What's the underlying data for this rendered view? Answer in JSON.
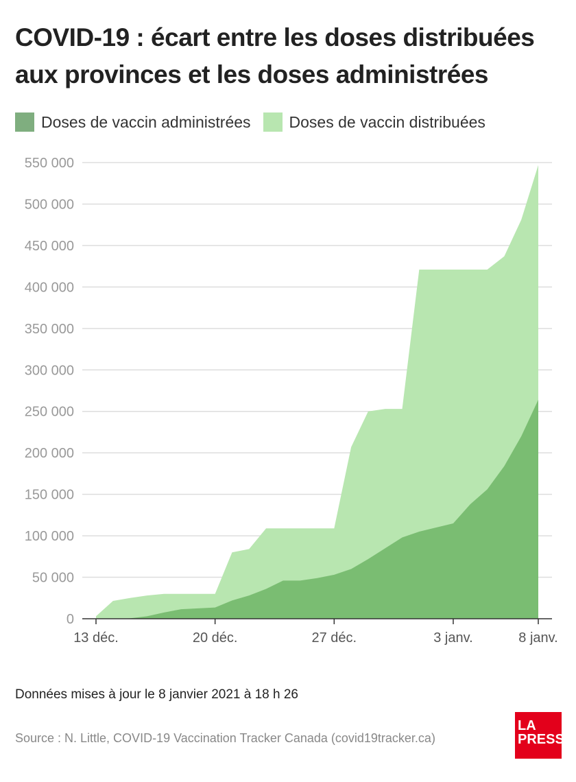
{
  "chart_data": {
    "type": "area",
    "title": "COVID-19 : écart entre les doses distribuées aux provinces et les doses administrées",
    "xlabel": "",
    "ylabel": "",
    "x": [
      "13 déc.",
      "14 déc.",
      "15 déc.",
      "16 déc.",
      "17 déc.",
      "18 déc.",
      "19 déc.",
      "20 déc.",
      "21 déc.",
      "22 déc.",
      "23 déc.",
      "24 déc.",
      "25 déc.",
      "26 déc.",
      "27 déc.",
      "28 déc.",
      "29 déc.",
      "30 déc.",
      "31 déc.",
      "1 janv.",
      "2 janv.",
      "3 janv.",
      "4 janv.",
      "5 janv.",
      "6 janv.",
      "7 janv.",
      "8 janv."
    ],
    "x_ticks": [
      {
        "index": 0,
        "label": "13 déc."
      },
      {
        "index": 7,
        "label": "20 déc."
      },
      {
        "index": 14,
        "label": "27 déc."
      },
      {
        "index": 21,
        "label": "3 janv."
      },
      {
        "index": 26,
        "label": "8 janv."
      }
    ],
    "y_ticks": [
      {
        "value": 0,
        "label": "0"
      },
      {
        "value": 50000,
        "label": "50 000"
      },
      {
        "value": 100000,
        "label": "100 000"
      },
      {
        "value": 150000,
        "label": "150 000"
      },
      {
        "value": 200000,
        "label": "200 000"
      },
      {
        "value": 250000,
        "label": "250 000"
      },
      {
        "value": 300000,
        "label": "300 000"
      },
      {
        "value": 350000,
        "label": "350 000"
      },
      {
        "value": 400000,
        "label": "400 000"
      },
      {
        "value": 450000,
        "label": "450 000"
      },
      {
        "value": 500000,
        "label": "500 000"
      },
      {
        "value": 550000,
        "label": "550 000"
      }
    ],
    "ylim": [
      0,
      550000
    ],
    "grid": true,
    "legend_position": "top-left",
    "series": [
      {
        "name": "Doses de vaccin distribuées",
        "color": "#b8e6b0",
        "values": [
          3000,
          21500,
          25000,
          28000,
          30000,
          30000,
          30000,
          30000,
          80000,
          84000,
          109000,
          109000,
          109000,
          109000,
          109000,
          207000,
          250000,
          253000,
          253000,
          421000,
          421000,
          421000,
          421000,
          421000,
          437000,
          481000,
          547000
        ]
      },
      {
        "name": "Doses de vaccin administrées",
        "color": "#7abd72",
        "legend_color": "#7fae7f",
        "values": [
          0,
          0,
          500,
          3000,
          7500,
          11500,
          12500,
          13500,
          22000,
          28000,
          36000,
          46000,
          46000,
          49000,
          53000,
          60000,
          72000,
          85000,
          98000,
          105000,
          110000,
          115000,
          138000,
          156000,
          184000,
          220000,
          264000
        ]
      }
    ]
  },
  "footer": {
    "updated": "Données mises à jour le 8 janvier 2021 à 18 h 26",
    "source": "Source : N. Little, COVID-19 Vaccination Tracker Canada (covid19tracker.ca)"
  },
  "logo": {
    "line1": "LA",
    "line2": "PRESSE",
    "color": "#e3001b"
  }
}
